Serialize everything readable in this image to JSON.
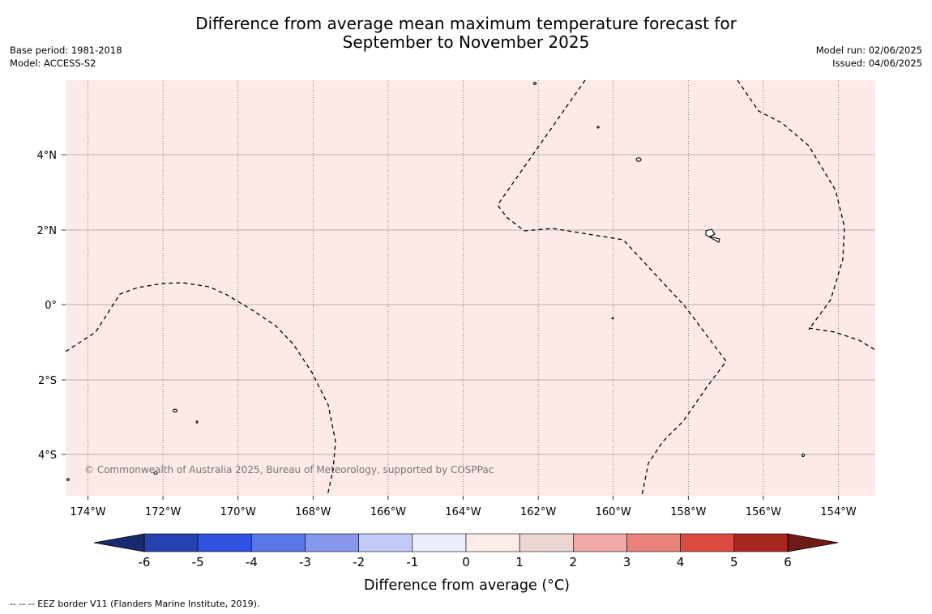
{
  "title_line1": "Difference from average mean maximum temperature forecast for",
  "title_line2": "September to November 2025",
  "base_period": "Base period: 1981-2018",
  "model": "Model: ACCESS-S2",
  "model_run": "Model run: 02/06/2025",
  "issued": "Issued: 04/06/2025",
  "copyright": "© Commonwealth of Australia 2025, Bureau of Meteorology, supported by COSPPac",
  "map": {
    "background_color": "#fbeae8",
    "lat_ticks": [
      "4°N",
      "2°N",
      "0°",
      "2°S",
      "4°S"
    ],
    "lon_ticks": [
      "174°W",
      "172°W",
      "170°W",
      "168°W",
      "166°W",
      "164°W",
      "162°W",
      "160°W",
      "158°W",
      "156°W",
      "154°W"
    ]
  },
  "colorbar": {
    "label": "Difference from average (°C)",
    "ticks": [
      "-6",
      "-5",
      "-4",
      "-3",
      "-2",
      "-1",
      "0",
      "1",
      "2",
      "3",
      "4",
      "5",
      "6"
    ],
    "low_extend_color": "#1a2a6e",
    "high_extend_color": "#6e1a16",
    "colors": [
      "#2540b0",
      "#2f53e0",
      "#5a77e8",
      "#8797ec",
      "#c3c9f6",
      "#eceefb",
      "#fcece8",
      "#ecd6d4",
      "#f0aaa6",
      "#e8827a",
      "#dc4a40",
      "#a82620"
    ]
  },
  "footnote": "--  --  -- EEZ border V11 (Flanders Marine Institute, 2019)."
}
